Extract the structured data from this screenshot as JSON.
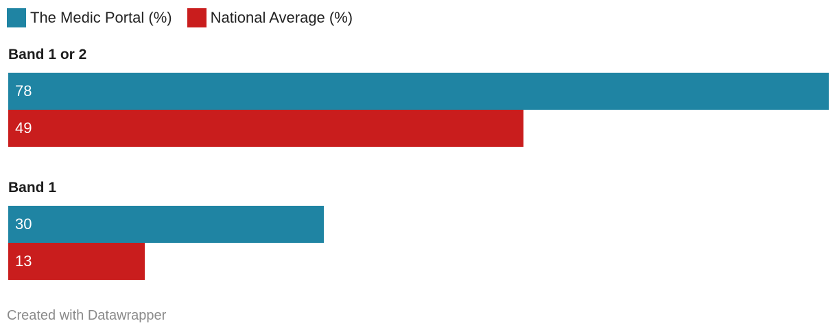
{
  "chart_data": {
    "type": "bar",
    "orientation": "horizontal",
    "categories": [
      "Band 1 or 2",
      "Band 1"
    ],
    "series": [
      {
        "name": "The Medic Portal (%)",
        "color": "#1f84a3",
        "values": [
          78,
          30
        ]
      },
      {
        "name": "National Average (%)",
        "color": "#c91d1d",
        "values": [
          49,
          13
        ]
      }
    ],
    "xlim": [
      0,
      78
    ],
    "grid": false,
    "legend_position": "top-left",
    "data_labels": "inside-left"
  },
  "footer": "Created with Datawrapper"
}
